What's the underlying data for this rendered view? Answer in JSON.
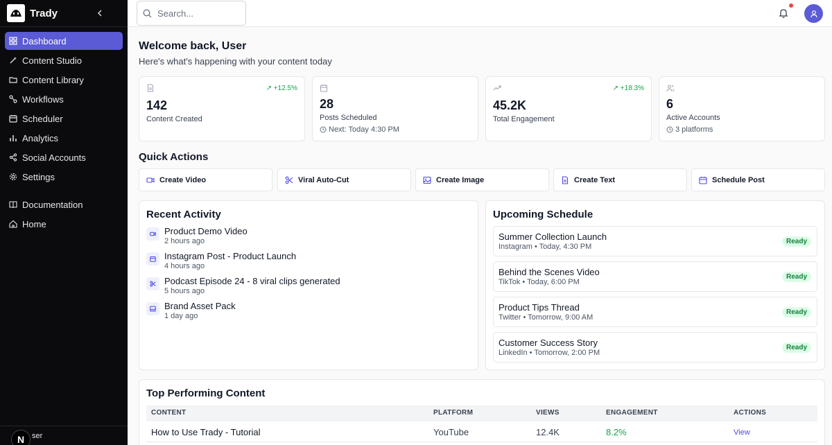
{
  "app": {
    "name": "Trady"
  },
  "sidebar": {
    "items": [
      {
        "label": "Dashboard",
        "icon": "grid-icon"
      },
      {
        "label": "Content Studio",
        "icon": "wand-icon"
      },
      {
        "label": "Content Library",
        "icon": "folder-icon"
      },
      {
        "label": "Workflows",
        "icon": "workflow-icon"
      },
      {
        "label": "Scheduler",
        "icon": "calendar-icon"
      },
      {
        "label": "Analytics",
        "icon": "bar-chart-icon"
      },
      {
        "label": "Social Accounts",
        "icon": "share-icon"
      },
      {
        "label": "Settings",
        "icon": "gear-icon"
      }
    ],
    "secondary": [
      {
        "label": "Documentation",
        "icon": "book-icon"
      },
      {
        "label": "Home",
        "icon": "home-icon"
      }
    ],
    "user": {
      "avatar_letter": "N",
      "name": "ser"
    }
  },
  "header": {
    "search_placeholder": "Search..."
  },
  "welcome": {
    "title": "Welcome back, User",
    "subtitle": "Here's what's happening with your content today"
  },
  "stats": [
    {
      "value": "142",
      "label": "Content Created",
      "change": "+12.5%"
    },
    {
      "value": "28",
      "label": "Posts Scheduled",
      "extra": "Next: Today 4:30 PM"
    },
    {
      "value": "45.2K",
      "label": "Total Engagement",
      "change": "+18.3%"
    },
    {
      "value": "6",
      "label": "Active Accounts",
      "extra": "3 platforms"
    }
  ],
  "quick_actions": {
    "title": "Quick Actions",
    "items": [
      {
        "label": "Create Video"
      },
      {
        "label": "Viral Auto-Cut"
      },
      {
        "label": "Create Image"
      },
      {
        "label": "Create Text"
      },
      {
        "label": "Schedule Post"
      }
    ]
  },
  "recent_activity": {
    "title": "Recent Activity",
    "items": [
      {
        "title": "Product Demo Video",
        "time": "2 hours ago"
      },
      {
        "title": "Instagram Post - Product Launch",
        "time": "4 hours ago"
      },
      {
        "title": "Podcast Episode 24 - 8 viral clips generated",
        "time": "5 hours ago"
      },
      {
        "title": "Brand Asset Pack",
        "time": "1 day ago"
      }
    ]
  },
  "upcoming_schedule": {
    "title": "Upcoming Schedule",
    "items": [
      {
        "title": "Summer Collection Launch",
        "meta": "Instagram • Today, 4:30 PM",
        "status": "Ready"
      },
      {
        "title": "Behind the Scenes Video",
        "meta": "TikTok • Today, 6:00 PM",
        "status": "Ready"
      },
      {
        "title": "Product Tips Thread",
        "meta": "Twitter • Tomorrow, 9:00 AM",
        "status": "Ready"
      },
      {
        "title": "Customer Success Story",
        "meta": "LinkedIn • Tomorrow, 2:00 PM",
        "status": "Ready"
      }
    ]
  },
  "top_content": {
    "title": "Top Performing Content",
    "columns": [
      "CONTENT",
      "PLATFORM",
      "VIEWS",
      "ENGAGEMENT",
      "ACTIONS"
    ],
    "rows": [
      {
        "content": "How to Use Trady - Tutorial",
        "platform": "YouTube",
        "views": "12.4K",
        "engagement": "8.2%",
        "action": "View"
      }
    ]
  },
  "colors": {
    "accent": "#5b5bd6",
    "positive": "#16a34a",
    "sidebar_bg": "#0b0b0d",
    "badge_bg": "#dcfce7"
  }
}
